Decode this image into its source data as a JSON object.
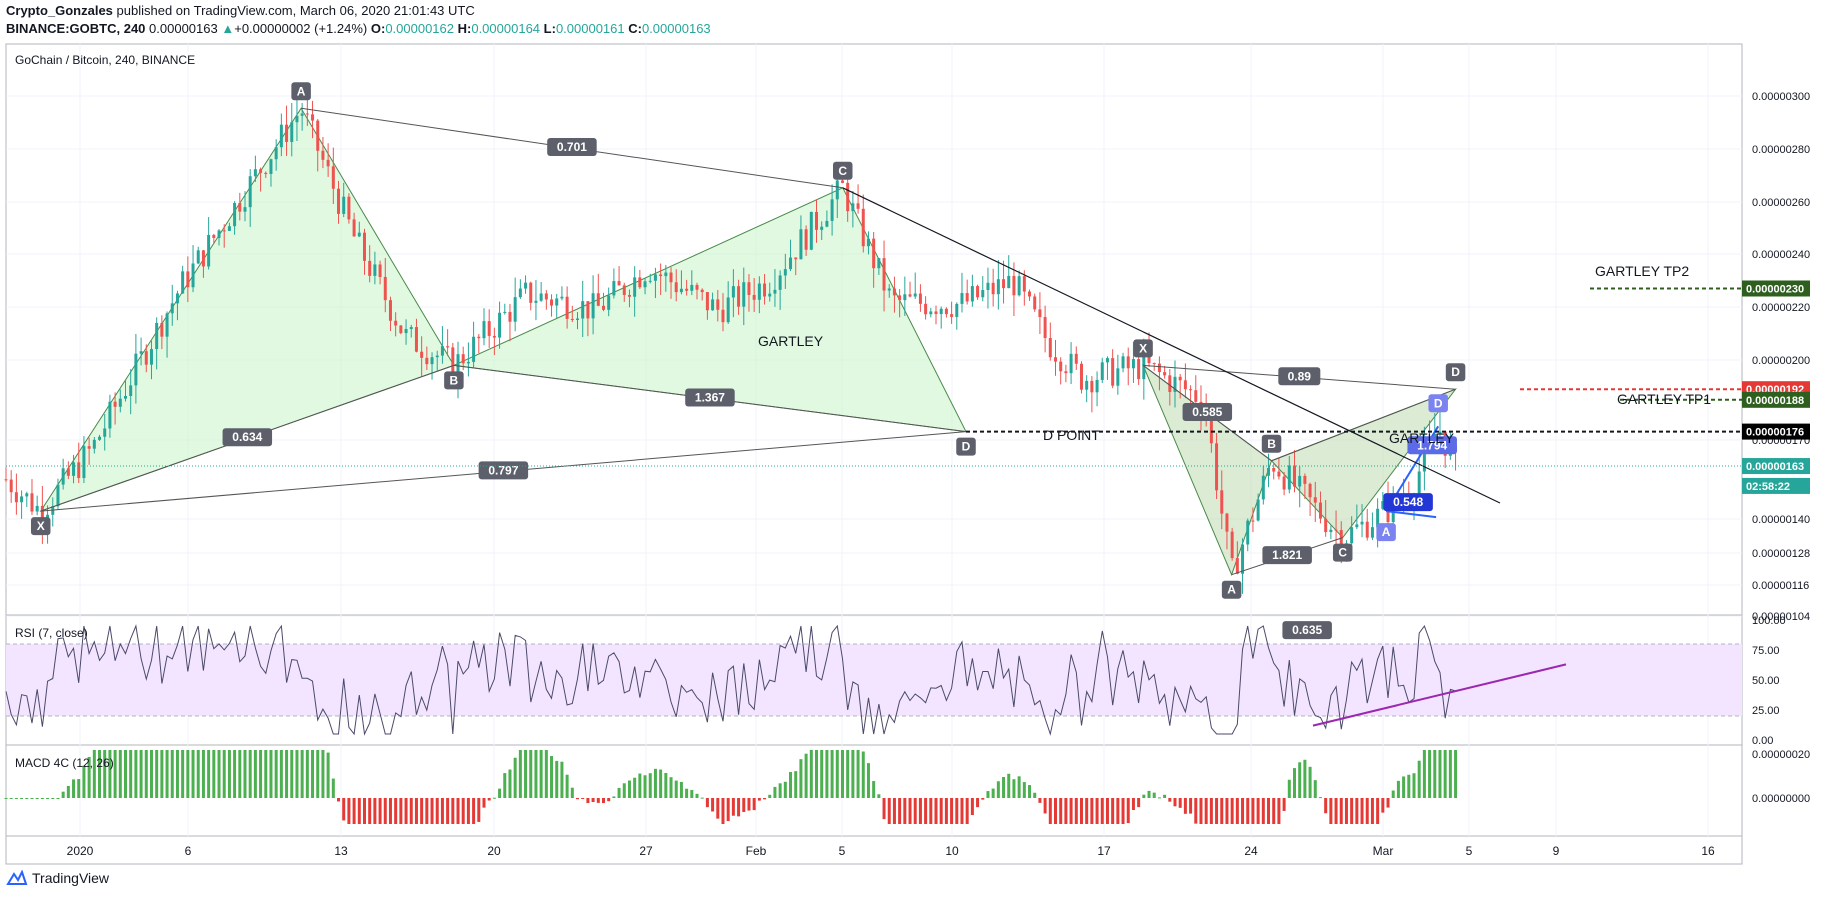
{
  "header": {
    "author": "Crypto_Gonzales",
    "published_text": " published on TradingView.com, March 06, 2020 21:01:43 UTC",
    "symbol": "BINANCE:GOBTC, 240",
    "last": "0.00000163",
    "change": "+0.00000002 (+1.24%)",
    "o_label": "O:",
    "o": "0.00000162",
    "h_label": "H:",
    "h": "0.00000164",
    "l_label": "L:",
    "l": "0.00000161",
    "c_label": "C:",
    "c": "0.00000163"
  },
  "colors": {
    "up": "#26a69a",
    "down": "#ef5350",
    "pattern_fill": "#ccf5cc",
    "rsi_band": "#f3e5ff",
    "rsi_trend": "#9c27b0",
    "macd_up": "#4caf50",
    "macd_down": "#e53935",
    "target_red": "#e53935",
    "target_green": "#2e5f1e"
  },
  "chart_data": [
    {
      "type": "candlestick",
      "title": "GoChain / Bitcoin, 240, BINANCE",
      "y_ticks": [
        "0.00000300",
        "0.00000280",
        "0.00000260",
        "0.00000240",
        "0.00000220",
        "0.00000200",
        "0.00000170",
        "0.00000140",
        "0.00000128",
        "0.00000116",
        "0.00000104"
      ],
      "x_ticks": [
        "2020",
        "6",
        "13",
        "20",
        "27",
        "Feb",
        "5",
        "10",
        "17",
        "24",
        "Mar",
        "5",
        "9",
        "16"
      ],
      "ylim": [
        1.04e-06,
        3.1e-06
      ],
      "price_labels": [
        {
          "text": "0.00000230",
          "role": "gartley-tp2"
        },
        {
          "text": "0.00000192",
          "role": "stop"
        },
        {
          "text": "0.00000188",
          "role": "gartley-tp1"
        },
        {
          "text": "0.00000176",
          "role": "d-point"
        },
        {
          "text": "0.00000163",
          "role": "last"
        },
        {
          "text": "02:58:22",
          "role": "countdown"
        }
      ],
      "annotations": {
        "gartley_1": "GARTLEY",
        "gartley_2": "GARTLEY",
        "d_point": "D POINT",
        "tp1": "GARTLEY TP1",
        "tp2": "GARTLEY TP2"
      },
      "pattern1_points": [
        {
          "label": "X",
          "price": 1.46e-06,
          "t": 0.02
        },
        {
          "label": "A",
          "price": 2.98e-06,
          "t": 0.17
        },
        {
          "label": "B",
          "price": 2.01e-06,
          "t": 0.258
        },
        {
          "label": "C",
          "price": 2.68e-06,
          "t": 0.482
        },
        {
          "label": "D",
          "price": 1.76e-06,
          "t": 0.553
        }
      ],
      "pattern1_ratios": [
        "0.701",
        "1.367",
        "0.634",
        "0.797"
      ],
      "pattern2_points": [
        {
          "label": "X",
          "price": 2.01e-06,
          "t": 0.655
        },
        {
          "label": "A",
          "price": 1.22e-06,
          "t": 0.706
        },
        {
          "label": "B",
          "price": 1.65e-06,
          "t": 0.729
        },
        {
          "label": "C",
          "price": 1.36e-06,
          "t": 0.77
        },
        {
          "label": "D",
          "price": 1.92e-06,
          "t": 0.835
        }
      ],
      "pattern2_ratios": [
        "0.89",
        "0.585",
        "1.821",
        "0.635"
      ],
      "pattern3_points": [
        {
          "label": "A",
          "price": 1.46e-06,
          "t": 0.795
        },
        {
          "label": "D",
          "price": 1.78e-06,
          "t": 0.825
        }
      ],
      "pattern3_ratios": [
        "1.794",
        "0.548"
      ]
    },
    {
      "type": "line",
      "title": "RSI (7, close)",
      "y_ticks": [
        "100.00",
        "75.00",
        "50.00",
        "25.00",
        "0.00"
      ],
      "ylim": [
        0,
        100
      ],
      "band": [
        20,
        80
      ]
    },
    {
      "type": "bar",
      "title": "MACD 4C (12, 26)",
      "y_ticks": [
        "0.00000020",
        "0.00000000"
      ]
    }
  ],
  "footer": {
    "brand": "TradingView"
  }
}
